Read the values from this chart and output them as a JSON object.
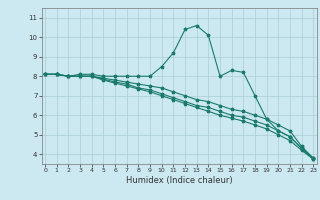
{
  "title": "",
  "xlabel": "Humidex (Indice chaleur)",
  "bg_color": "#cce8f0",
  "line_color": "#1a7a6e",
  "grid_color": "#aacdd8",
  "x_ticks": [
    0,
    1,
    2,
    3,
    4,
    5,
    6,
    7,
    8,
    9,
    10,
    11,
    12,
    13,
    14,
    15,
    16,
    17,
    18,
    19,
    20,
    21,
    22,
    23
  ],
  "y_ticks": [
    4,
    5,
    6,
    7,
    8,
    9,
    10,
    11
  ],
  "xlim": [
    -0.3,
    23.3
  ],
  "ylim": [
    3.5,
    11.5
  ],
  "series": [
    {
      "x": [
        0,
        1,
        2,
        3,
        4,
        5,
        6,
        7,
        8,
        9,
        10,
        11,
        12,
        13,
        14,
        15,
        16,
        17,
        18,
        19,
        20,
        21,
        22,
        23
      ],
      "y": [
        8.1,
        8.1,
        8.0,
        8.1,
        8.1,
        8.0,
        8.0,
        8.0,
        8.0,
        8.0,
        8.5,
        9.2,
        10.4,
        10.6,
        10.1,
        8.0,
        8.3,
        8.2,
        7.0,
        5.8,
        5.2,
        4.9,
        4.3,
        3.8
      ]
    },
    {
      "x": [
        0,
        1,
        2,
        3,
        4,
        5,
        6,
        7,
        8,
        9,
        10,
        11,
        12,
        13,
        14,
        15,
        16,
        17,
        18,
        19,
        20,
        21,
        22,
        23
      ],
      "y": [
        8.1,
        8.1,
        8.0,
        8.0,
        8.0,
        7.9,
        7.8,
        7.7,
        7.6,
        7.5,
        7.4,
        7.2,
        7.0,
        6.8,
        6.7,
        6.5,
        6.3,
        6.2,
        6.0,
        5.8,
        5.5,
        5.2,
        4.4,
        3.8
      ]
    },
    {
      "x": [
        0,
        1,
        2,
        3,
        4,
        5,
        6,
        7,
        8,
        9,
        10,
        11,
        12,
        13,
        14,
        15,
        16,
        17,
        18,
        19,
        20,
        21,
        22,
        23
      ],
      "y": [
        8.1,
        8.1,
        8.0,
        8.0,
        8.0,
        7.85,
        7.7,
        7.6,
        7.4,
        7.3,
        7.1,
        6.9,
        6.7,
        6.5,
        6.4,
        6.2,
        6.0,
        5.9,
        5.7,
        5.5,
        5.2,
        4.9,
        4.3,
        3.75
      ]
    },
    {
      "x": [
        0,
        1,
        2,
        3,
        4,
        5,
        6,
        7,
        8,
        9,
        10,
        11,
        12,
        13,
        14,
        15,
        16,
        17,
        18,
        19,
        20,
        21,
        22,
        23
      ],
      "y": [
        8.1,
        8.1,
        8.0,
        8.0,
        8.0,
        7.8,
        7.65,
        7.5,
        7.35,
        7.2,
        7.0,
        6.8,
        6.6,
        6.4,
        6.2,
        6.0,
        5.85,
        5.7,
        5.5,
        5.3,
        5.0,
        4.7,
        4.2,
        3.75
      ]
    }
  ]
}
